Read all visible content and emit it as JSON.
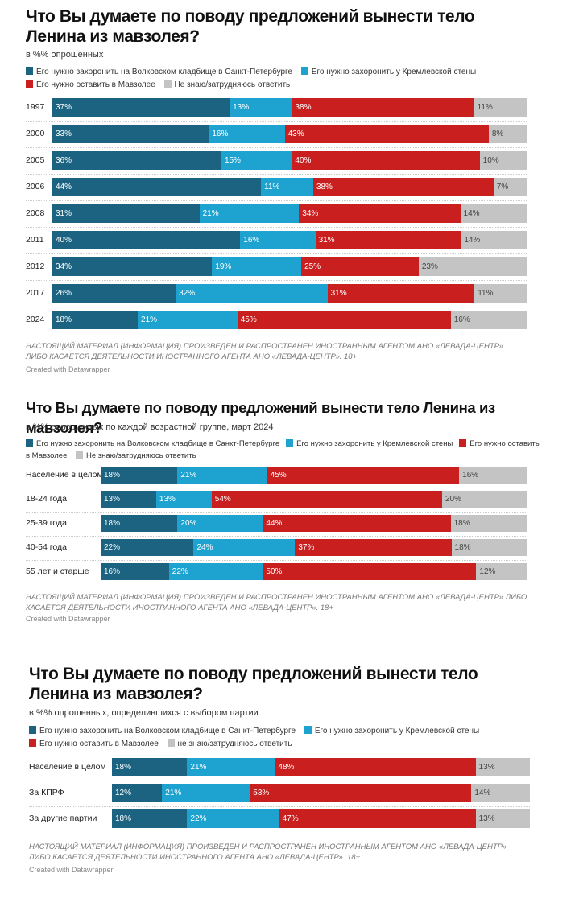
{
  "colors": {
    "volkovo": "#1b6381",
    "kremlin": "#1ea3d0",
    "mausoleum": "#c91f1f",
    "dontknow": "#c4c4c4"
  },
  "chart_data": [
    {
      "type": "bar",
      "stacked": true,
      "orientation": "horizontal",
      "title": "Что Вы думаете по поводу предложений вынести тело Ленина из мавзолея?",
      "subtitle": "в %% опрошенных",
      "legend_position": "top-left",
      "categories": [
        "1997",
        "2000",
        "2005",
        "2006",
        "2008",
        "2011",
        "2012",
        "2017",
        "2024"
      ],
      "series": [
        {
          "name": "Его нужно захоронить на Волковском кладбище в Санкт-Петербурге",
          "key": "volkovo",
          "values": [
            37,
            33,
            36,
            44,
            31,
            40,
            34,
            26,
            18
          ]
        },
        {
          "name": "Его нужно захоронить у Кремлевской стены",
          "key": "kremlin",
          "values": [
            13,
            16,
            15,
            11,
            21,
            16,
            19,
            32,
            21
          ]
        },
        {
          "name": "Его нужно оставить в Мавзолее",
          "key": "mausoleum",
          "values": [
            38,
            43,
            40,
            38,
            34,
            31,
            25,
            31,
            45
          ]
        },
        {
          "name": "Не знаю/затрудняюсь ответить",
          "key": "dontknow",
          "values": [
            11,
            8,
            10,
            7,
            14,
            14,
            23,
            11,
            16
          ]
        }
      ],
      "note": "НАСТОЯЩИЙ МАТЕРИАЛ (ИНФОРМАЦИЯ) ПРОИЗВЕДЕН И РАСПРОСТРАНЕН ИНОСТРАННЫМ АГЕНТОМ АНО «ЛЕВАДА-ЦЕНТР» ЛИБО КАСАЕТСЯ ДЕЯТЕЛЬНОСТИ ИНОСТРАННОГО АГЕНТА АНО «ЛЕВАДА-ЦЕНТР». 18+",
      "credit": "Created with Datawrapper"
    },
    {
      "type": "bar",
      "stacked": true,
      "orientation": "horizontal",
      "title": "Что Вы думаете по поводу предложений вынести тело Ленина из мавзолея?",
      "subtitle": "в %% опрошенных по каждой возрастной группе, март 2024",
      "legend_position": "top-left",
      "categories": [
        "Население в целом",
        "18-24 года",
        "25-39 года",
        "40-54 года",
        "55 лет и старше"
      ],
      "series": [
        {
          "name": "Его нужно захоронить на Волковском кладбище в Санкт-Петербурге",
          "key": "volkovo",
          "values": [
            18,
            13,
            18,
            22,
            16
          ]
        },
        {
          "name": "Его нужно захоронить у Кремлевской стены",
          "key": "kremlin",
          "values": [
            21,
            13,
            20,
            24,
            22
          ]
        },
        {
          "name": "Его нужно оставить в Мавзолее",
          "key": "mausoleum",
          "values": [
            45,
            54,
            44,
            37,
            50
          ]
        },
        {
          "name": "Не знаю/затрудняюсь ответить",
          "key": "dontknow",
          "values": [
            16,
            20,
            18,
            18,
            12
          ]
        }
      ],
      "note": "НАСТОЯЩИЙ МАТЕРИАЛ (ИНФОРМАЦИЯ) ПРОИЗВЕДЕН И РАСПРОСТРАНЕН ИНОСТРАННЫМ АГЕНТОМ АНО «ЛЕВАДА-ЦЕНТР» ЛИБО КАСАЕТСЯ ДЕЯТЕЛЬНОСТИ ИНОСТРАННОГО АГЕНТА АНО «ЛЕВАДА-ЦЕНТР». 18+",
      "credit": "Created with Datawrapper"
    },
    {
      "type": "bar",
      "stacked": true,
      "orientation": "horizontal",
      "title": "Что Вы думаете по поводу предложений вынести тело Ленина из мавзолея?",
      "subtitle": "в %% опрошенных, определившихся с выбором партии",
      "legend_position": "top-left",
      "categories": [
        "Население в целом",
        "За КПРФ",
        "За другие партии"
      ],
      "series": [
        {
          "name": "Его нужно захоронить на Волковском кладбище в Санкт-Петербурге",
          "key": "volkovo",
          "values": [
            18,
            12,
            18
          ]
        },
        {
          "name": "Его нужно захоронить у Кремлевской стены",
          "key": "kremlin",
          "values": [
            21,
            21,
            22
          ]
        },
        {
          "name": "Его нужно оставить в Мавзолее",
          "key": "mausoleum",
          "values": [
            48,
            53,
            47
          ]
        },
        {
          "name": "не знаю/затрудняюсь ответить",
          "key": "dontknow",
          "values": [
            13,
            14,
            13
          ]
        }
      ],
      "note": "НАСТОЯЩИЙ МАТЕРИАЛ (ИНФОРМАЦИЯ) ПРОИЗВЕДЕН И РАСПРОСТРАНЕН ИНОСТРАННЫМ АГЕНТОМ АНО «ЛЕВАДА-ЦЕНТР» ЛИБО КАСАЕТСЯ ДЕЯТЕЛЬНОСТИ ИНОСТРАННОГО АГЕНТА АНО «ЛЕВАДА-ЦЕНТР». 18+",
      "credit": "Created with Datawrapper"
    }
  ]
}
